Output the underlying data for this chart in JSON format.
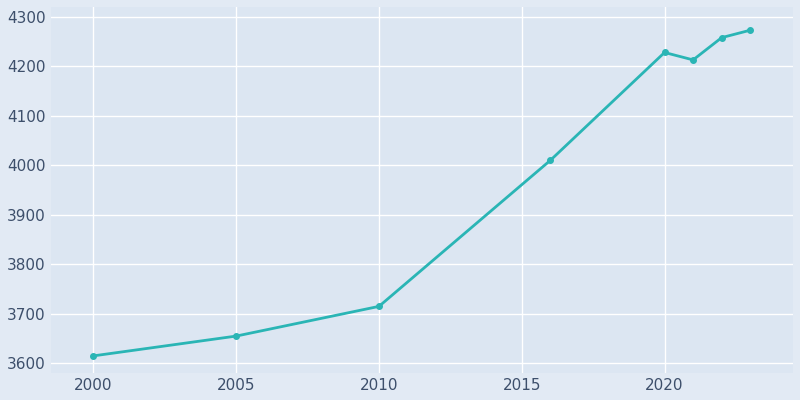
{
  "years": [
    2000,
    2005,
    2010,
    2016,
    2020,
    2021,
    2022,
    2023
  ],
  "population": [
    3615,
    3655,
    3715,
    4010,
    4228,
    4213,
    4258,
    4273
  ],
  "line_color": "#2ab5b5",
  "background_color": "#e2eaf4",
  "axes_facecolor": "#dce6f2",
  "grid_color": "#ffffff",
  "tick_label_color": "#3d4f6b",
  "ylim": [
    3580,
    4320
  ],
  "xlim": [
    1998.5,
    2024.5
  ],
  "yticks": [
    3600,
    3700,
    3800,
    3900,
    4000,
    4100,
    4200,
    4300
  ],
  "xticks": [
    2000,
    2005,
    2010,
    2015,
    2020
  ],
  "line_width": 2.0,
  "marker_size": 4
}
